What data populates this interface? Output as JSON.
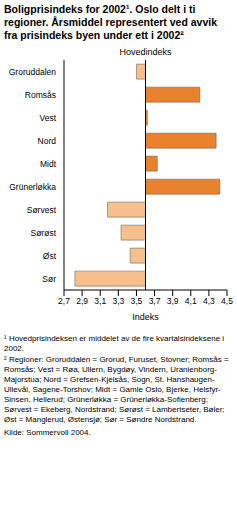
{
  "chart_data": {
    "type": "bar",
    "orientation": "horizontal",
    "title": "Boligprisindeks for 2002¹. Oslo delt i ti regioner. Årsmiddel representert ved avvik fra prisindeks byen under ett i 2002²",
    "categories": [
      "Groruddalen",
      "Romsås",
      "Vest",
      "Nord",
      "Midt",
      "Grünerløkka",
      "Sørvest",
      "Sørøst",
      "Øst",
      "Sør"
    ],
    "values": [
      3.5,
      4.2,
      3.62,
      4.38,
      3.73,
      4.42,
      3.18,
      3.33,
      3.43,
      2.82
    ],
    "colors": [
      "#f6c08c",
      "#e8822c",
      "#e8822c",
      "#e8822c",
      "#e8822c",
      "#e8822c",
      "#f6c08c",
      "#f6c08c",
      "#f6c08c",
      "#f6c08c"
    ],
    "reference_line": {
      "value": 3.6,
      "label": "Hovedindeks"
    },
    "x_label": "Indeks",
    "xlim": [
      2.7,
      4.5
    ],
    "xticks": [
      {
        "value": 2.7,
        "label": "2,7"
      },
      {
        "value": 2.9,
        "label": "2,9"
      },
      {
        "value": 3.1,
        "label": "3,1"
      },
      {
        "value": 3.3,
        "label": "3,3"
      },
      {
        "value": 3.5,
        "label": "3,5"
      },
      {
        "value": 3.7,
        "label": "3,7"
      },
      {
        "value": 3.9,
        "label": "3,9"
      },
      {
        "value": 4.1,
        "label": "4,1"
      },
      {
        "value": 4.3,
        "label": "4,3"
      },
      {
        "value": 4.5,
        "label": "4,5"
      }
    ],
    "grid": false,
    "footnotes": [
      "¹ Hovedprisindeksen er middelet av de fire kvartalsindeksene i 2002.",
      "² Regioner: Groruddalen = Grorud, Furuset, Stovner; Romsås = Romsås; Vest = Røa, Ullern, Bygdøy, Vindern, Uranienborg-Majorstua; Nord = Grefsen-Kjelsås, Sogn, St. Hanshaugen-Ullevål, Sagene-Torshov; Midt = Gamle Oslo, Bjerke, Helsfyr-Sinsen, Hellerud; Grünerløkka = Grünerløkka-Sofienberg; Sørvest = Ekeberg, Nordstrand; Sørøst = Lambertseter, Bøler; Øst = Manglerud, Østensjø; Sør = Søndre Nordstrand."
    ],
    "source": "Kilde: Sommervoll 2004."
  }
}
